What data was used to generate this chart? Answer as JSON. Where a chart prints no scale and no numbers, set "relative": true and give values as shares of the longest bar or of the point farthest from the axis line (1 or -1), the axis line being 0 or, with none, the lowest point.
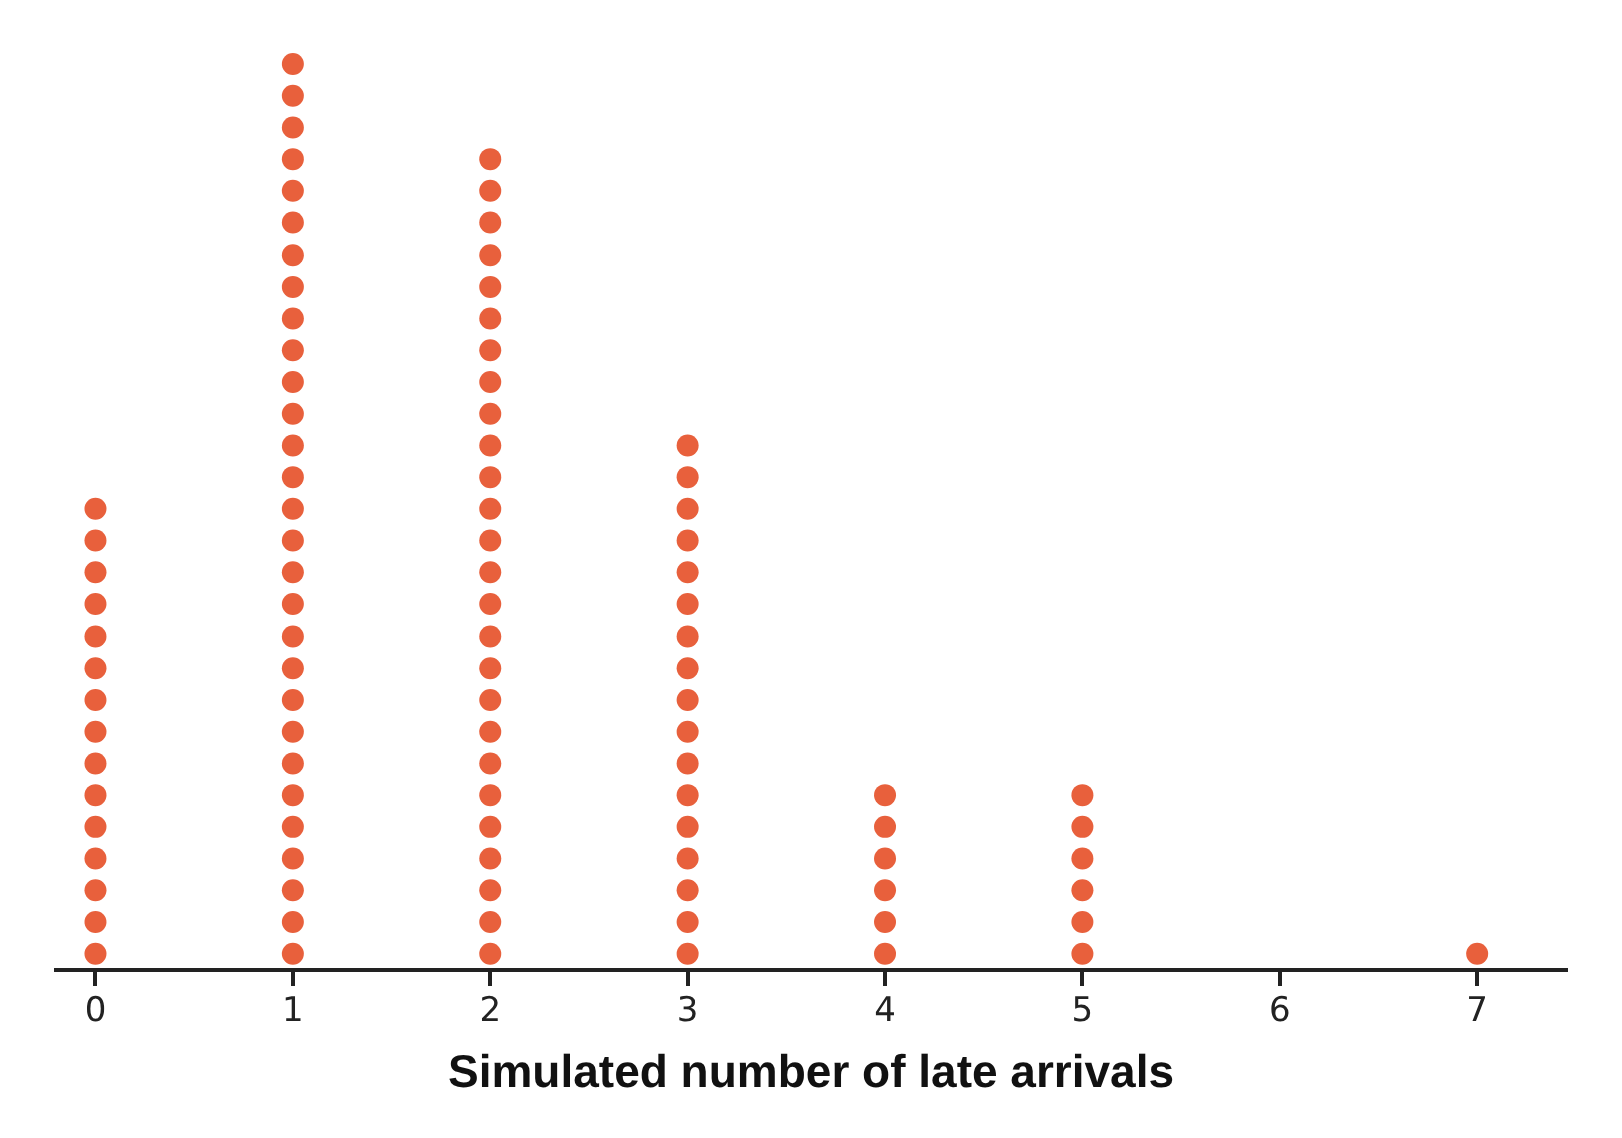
{
  "chart_data": {
    "type": "scatter",
    "xlabel": "Simulated number of late arrivals",
    "relative": true,
    "series": [
      {
        "color": "#e8603c",
        "x": [
          0,
          0,
          0,
          0,
          0,
          0,
          0,
          0,
          0,
          0,
          0,
          0,
          0,
          0,
          0
        ],
        "values": [
          0.018,
          0.053,
          0.088,
          0.123,
          0.158,
          0.193,
          0.228,
          0.263,
          0.298,
          0.333,
          0.368,
          0.404,
          0.439,
          0.474,
          0.509
        ]
      },
      {
        "color": "#e8603c",
        "x": [
          1,
          1,
          1,
          1,
          1,
          1,
          1,
          1,
          1,
          1,
          1,
          1,
          1,
          1,
          1,
          1,
          1,
          1,
          1,
          1,
          1,
          1,
          1,
          1,
          1,
          1,
          1,
          1,
          1
        ],
        "values": [
          0.018,
          0.053,
          0.088,
          0.123,
          0.158,
          0.193,
          0.228,
          0.263,
          0.298,
          0.333,
          0.368,
          0.404,
          0.439,
          0.474,
          0.509,
          0.544,
          0.579,
          0.614,
          0.649,
          0.684,
          0.719,
          0.754,
          0.789,
          0.825,
          0.86,
          0.895,
          0.93,
          0.965,
          1
        ]
      },
      {
        "color": "#e8603c",
        "x": [
          2,
          2,
          2,
          2,
          2,
          2,
          2,
          2,
          2,
          2,
          2,
          2,
          2,
          2,
          2,
          2,
          2,
          2,
          2,
          2,
          2,
          2,
          2,
          2,
          2,
          2
        ],
        "values": [
          0.018,
          0.053,
          0.088,
          0.123,
          0.158,
          0.193,
          0.228,
          0.263,
          0.298,
          0.333,
          0.368,
          0.404,
          0.439,
          0.474,
          0.509,
          0.544,
          0.579,
          0.614,
          0.649,
          0.684,
          0.719,
          0.754,
          0.789,
          0.825,
          0.86,
          0.895
        ]
      },
      {
        "color": "#e8603c",
        "x": [
          3,
          3,
          3,
          3,
          3,
          3,
          3,
          3,
          3,
          3,
          3,
          3,
          3,
          3,
          3,
          3,
          3
        ],
        "values": [
          0.018,
          0.053,
          0.088,
          0.123,
          0.158,
          0.193,
          0.228,
          0.263,
          0.298,
          0.333,
          0.368,
          0.404,
          0.439,
          0.474,
          0.509,
          0.544,
          0.579
        ]
      },
      {
        "color": "#e8603c",
        "x": [
          4,
          4,
          4,
          4,
          4,
          4
        ],
        "values": [
          0.018,
          0.053,
          0.088,
          0.123,
          0.158,
          0.193
        ]
      },
      {
        "color": "#e8603c",
        "x": [
          5,
          5,
          5,
          5,
          5,
          5
        ],
        "values": [
          0.018,
          0.053,
          0.088,
          0.123,
          0.158,
          0.193
        ]
      },
      {
        "color": "#e8603c",
        "x": [
          7
        ],
        "values": [
          0.018
        ]
      }
    ],
    "marker": "circle",
    "xlim": [
      -0.2,
      7.45
    ],
    "xticks": [
      0,
      1,
      2,
      3,
      4,
      5,
      6,
      7
    ],
    "grid": false,
    "legend": false
  }
}
